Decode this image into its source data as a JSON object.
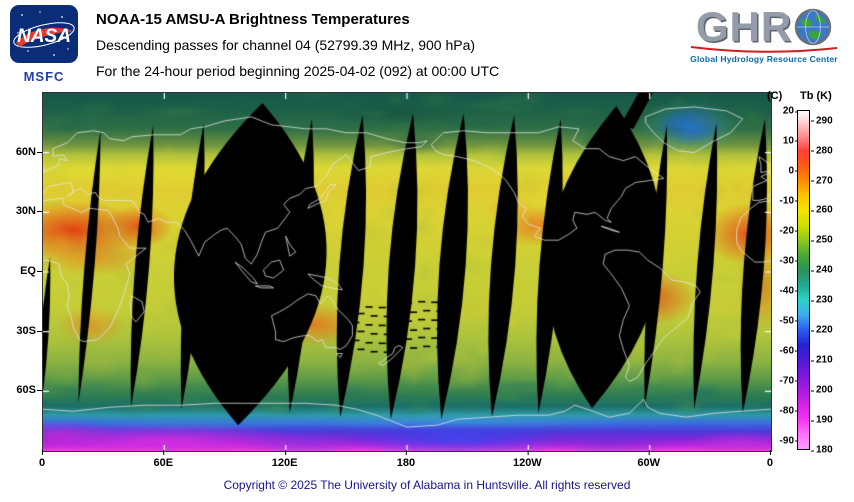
{
  "header": {
    "nasa_wordmark": "NASA",
    "msfc": "MSFC",
    "title": "NOAA-15 AMSU-A Brightness Temperatures",
    "subtitle1": "Descending passes for channel 04 (52799.39 MHz, 900 hPa)",
    "subtitle2": "For the 24-hour period beginning 2025-04-02 (092) at 00:00 UTC",
    "ghrc": {
      "letters": "GHR",
      "globe_letter": "C",
      "tagline": "Global Hydrology Resource Center"
    }
  },
  "map": {
    "lat_labels": [
      "60N",
      "30N",
      "EQ",
      "30S",
      "60S"
    ],
    "lon_labels": [
      "0",
      "60E",
      "120E",
      "180",
      "120W",
      "60W",
      "0"
    ],
    "no_data_color": "#000000",
    "no_data_meaning": "black lens-shaped gaps between descending orbital swaths"
  },
  "colorbar": {
    "left_unit": "(C)",
    "right_unit": "Tb (K)",
    "celsius_ticks": [
      "20",
      "10",
      "0",
      "-10",
      "-20",
      "-30",
      "-40",
      "-50",
      "-60",
      "-70",
      "-80",
      "-90"
    ],
    "kelvin_ticks": [
      "290",
      "280",
      "270",
      "260",
      "250",
      "240",
      "230",
      "220",
      "210",
      "200",
      "190",
      "180"
    ],
    "stops": [
      [
        "#ffffff",
        0
      ],
      [
        "#ffd2d2",
        0.031
      ],
      [
        "#ff8f8f",
        0.075
      ],
      [
        "#ff4034",
        0.119
      ],
      [
        "#ff5c14",
        0.163
      ],
      [
        "#ff8c00",
        0.207
      ],
      [
        "#ffc400",
        0.251
      ],
      [
        "#f2e400",
        0.295
      ],
      [
        "#cfe000",
        0.339
      ],
      [
        "#8cc81e",
        0.383
      ],
      [
        "#4aa832",
        0.427
      ],
      [
        "#2a9058",
        0.471
      ],
      [
        "#22a890",
        0.515
      ],
      [
        "#2cd2c8",
        0.559
      ],
      [
        "#3cacf0",
        0.604
      ],
      [
        "#2a5cf0",
        0.648
      ],
      [
        "#2222d2",
        0.692
      ],
      [
        "#5018d2",
        0.736
      ],
      [
        "#7a18da",
        0.78
      ],
      [
        "#aa18e2",
        0.824
      ],
      [
        "#d222e6",
        0.868
      ],
      [
        "#f233f2",
        0.912
      ],
      [
        "#ff70ff",
        0.956
      ],
      [
        "#ff9aff",
        1
      ]
    ]
  },
  "chart_data": {
    "type": "heatmap",
    "title": "NOAA-15 AMSU-A Brightness Temperatures",
    "subtitle": "Descending passes for channel 04 (52799.39 MHz, 900 hPa)",
    "period": "24-hour period beginning 2025-04-02 (092) at 00:00 UTC",
    "projection": "equirectangular world map, longitude 0 eastward to 0, latitude 90N to 90S",
    "x_axis": {
      "label": "longitude",
      "ticks": [
        "0",
        "60E",
        "120E",
        "180",
        "120W",
        "60W",
        "0"
      ]
    },
    "y_axis": {
      "label": "latitude",
      "ticks": [
        "60N",
        "30N",
        "EQ",
        "30S",
        "60S"
      ]
    },
    "colorbar_range_k": [
      180,
      293
    ],
    "colorbar_range_c": [
      -90,
      20
    ],
    "approx_zonal_mean_tb_k": {
      "75N": 243,
      "60N": 250,
      "45N": 261,
      "30N": 266,
      "15N": 265,
      "EQ": 262,
      "15S": 262,
      "30S": 259,
      "45S": 253,
      "60S": 243,
      "70S": 228,
      "80S": 205,
      "88S": 190
    },
    "hot_regions_tb_k": {
      "Sahara": 283,
      "Arabian Peninsula": 281,
      "India": 276,
      "Australia": 276,
      "Mexico and SW US": 277,
      "Northern Brazil": 279,
      "Southern Africa": 275
    },
    "cold_regions_tb_k": {
      "Greenland": 222,
      "Antarctic interior": 186
    },
    "no_data": "black lens-shaped gaps between descending orbital swaths; two full missing swaths near 100E and 80W"
  },
  "footer": {
    "copyright": "Copyright © 2025 The University of Alabama in Huntsville. All rights reserved"
  }
}
